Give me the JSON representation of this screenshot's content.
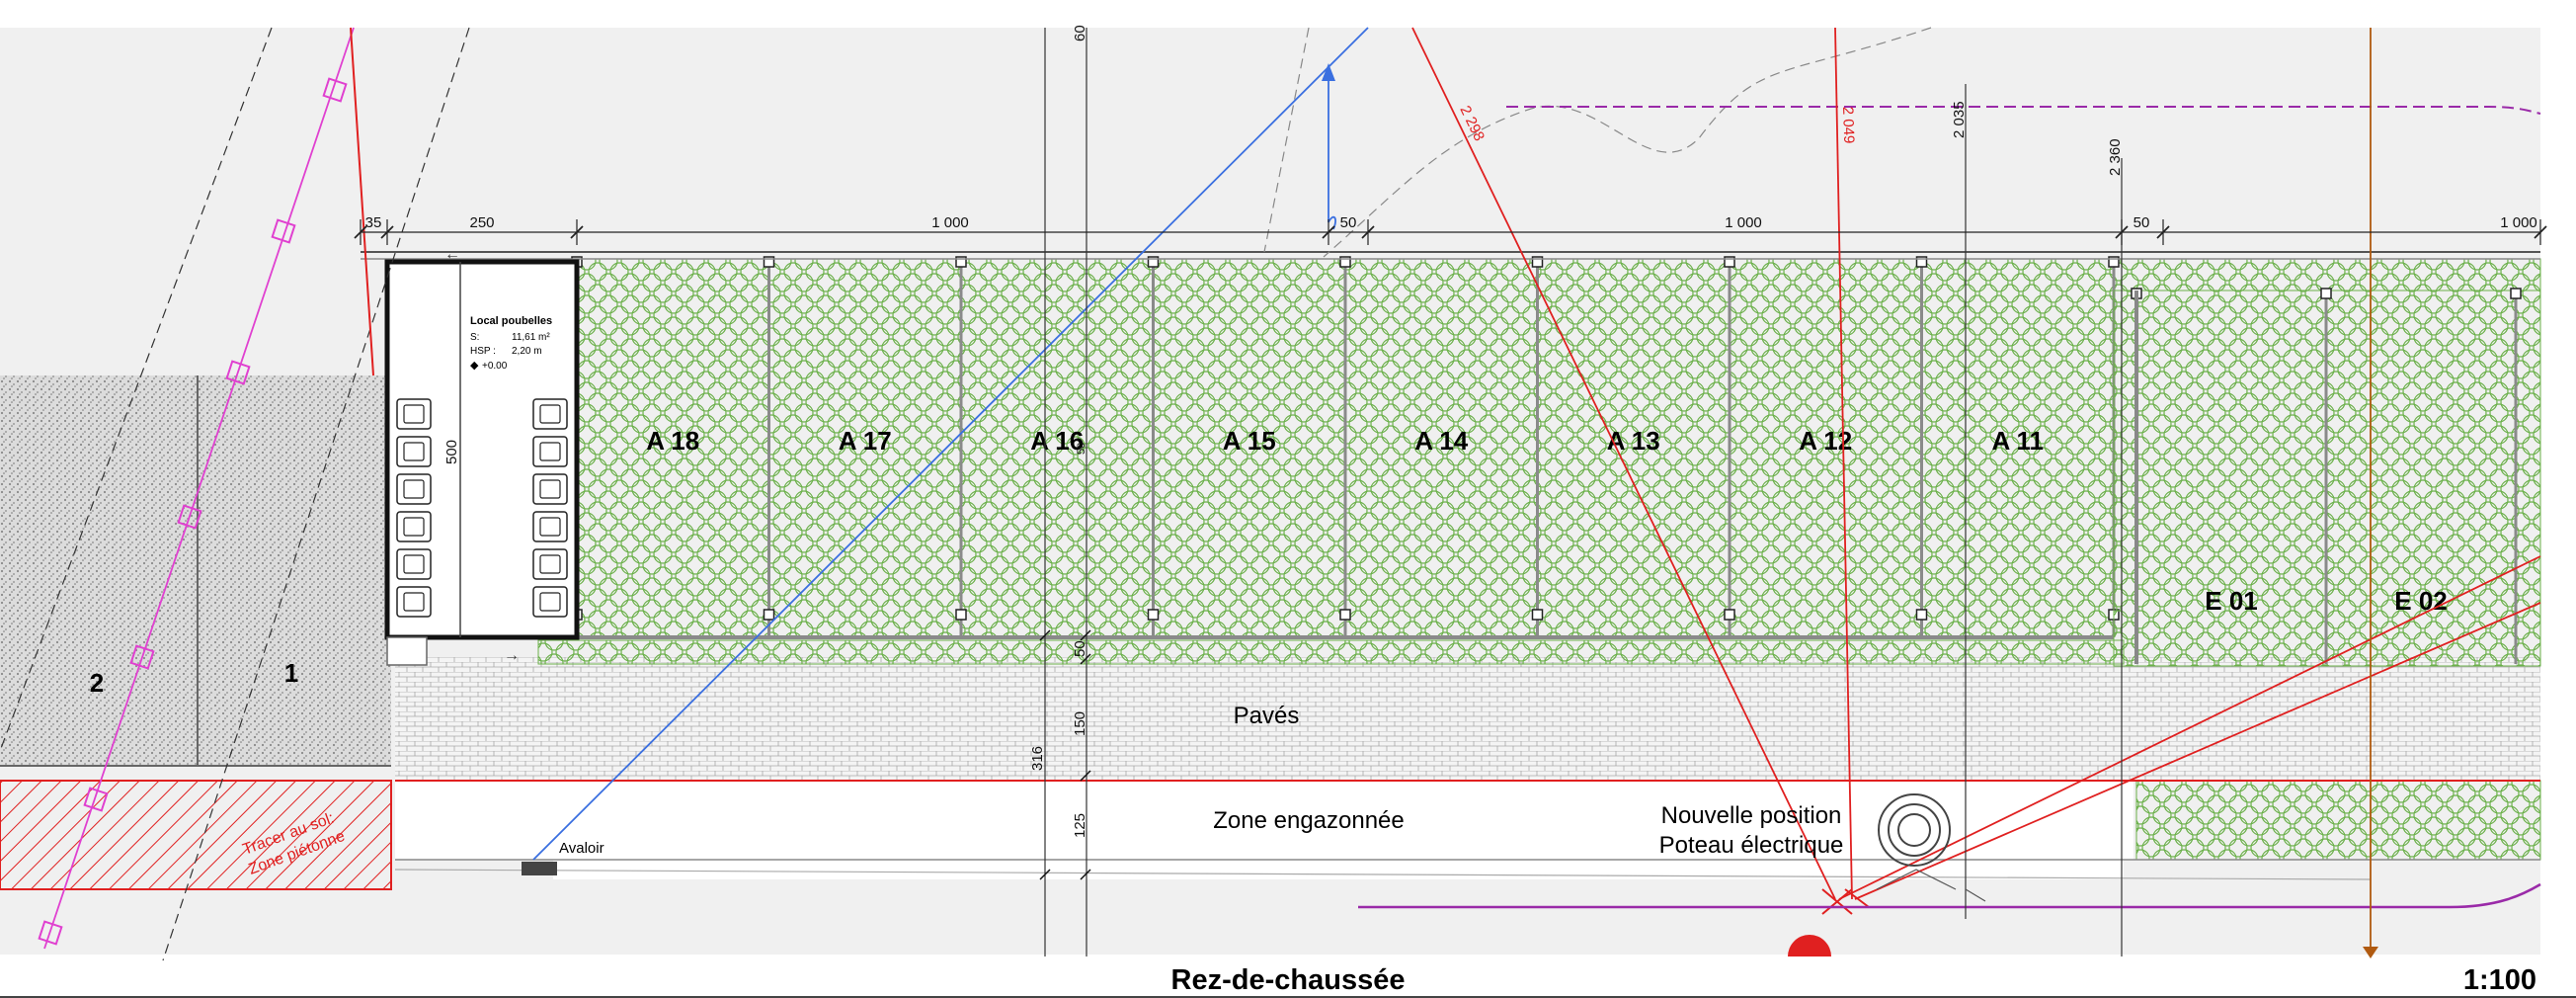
{
  "drawing": {
    "title": "Rez-de-chaussée",
    "scale": "1:100"
  },
  "parking_spaces": [
    {
      "label": "A 18"
    },
    {
      "label": "A 17"
    },
    {
      "label": "A 16"
    },
    {
      "label": "A 15"
    },
    {
      "label": "A 14"
    },
    {
      "label": "A 13"
    },
    {
      "label": "A 12"
    },
    {
      "label": "A 11"
    }
  ],
  "extra_spaces": [
    {
      "label": "E 01"
    },
    {
      "label": "E 02"
    }
  ],
  "existing_spaces": [
    {
      "label": "2"
    },
    {
      "label": "1"
    }
  ],
  "room": {
    "name": "Local poubelles",
    "area_label": "S:",
    "area_value": "11,61 m²",
    "height_label": "HSP :",
    "height_value": "2,20 m",
    "level": "+0.00"
  },
  "zones": {
    "paving": "Pavés",
    "lawn": "Zone engazonnée",
    "pole_line1": "Nouvelle position",
    "pole_line2": "Poteau électrique",
    "drain": "Avaloir",
    "marking_line1": "Tracer au sol:",
    "marking_line2": "Zone piétonne"
  },
  "dimensions": {
    "d35": "35",
    "d250": "250",
    "d1000a": "1 000",
    "d50a": "50",
    "d1000b": "1 000",
    "d50b": "50",
    "d1000c": "1 000",
    "d500": "500",
    "d60": "60",
    "d2035": "2 035",
    "d2360": "2 360",
    "d316": "316",
    "d150": "150",
    "d125": "125",
    "d50v": "50",
    "d50v2": "50",
    "ang2298": "2 298",
    "ang2049": "2 049"
  },
  "colors": {
    "hedge_green": "#6bb04a",
    "construction_red": "#e02020",
    "construction_blue": "#3a6fe0",
    "pink_line": "#e040d0",
    "purple_line": "#9a2aa8",
    "orange_line": "#b05a10"
  }
}
